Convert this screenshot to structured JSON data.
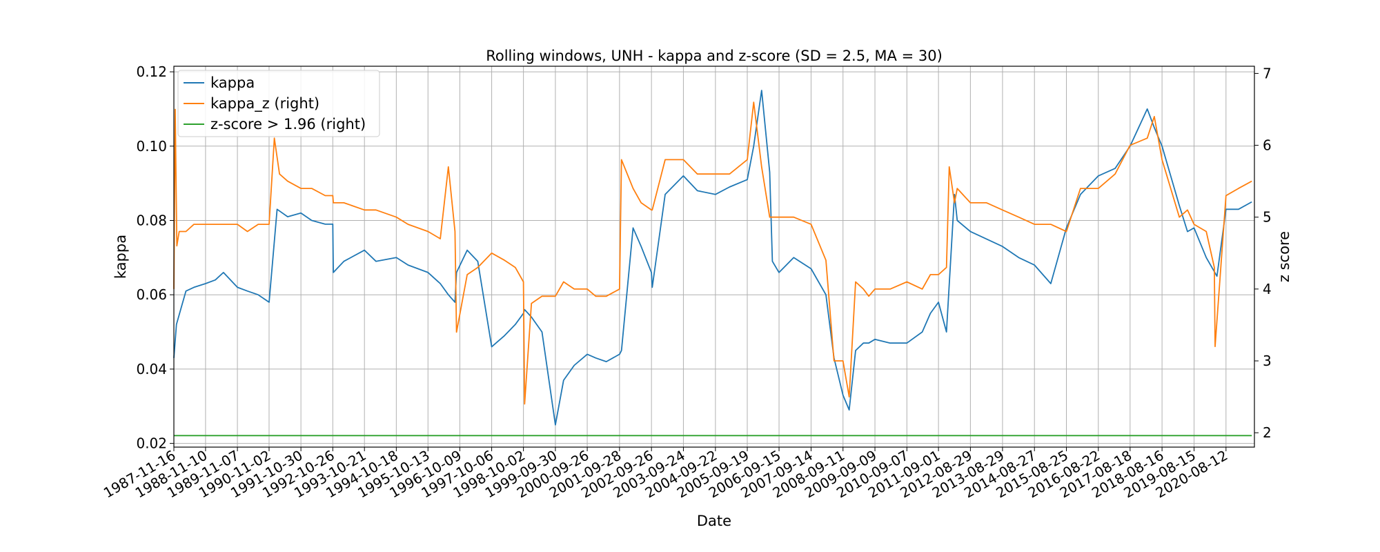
{
  "chart_data": {
    "type": "line",
    "title": "Rolling windows, UNH - kappa and z-score (SD = 2.5, MA = 30)",
    "xlabel": "Date",
    "ylabel": "kappa",
    "ylabel_right": "z score",
    "ylim": [
      0.019,
      0.1215
    ],
    "ylim_right": [
      1.8,
      7.1
    ],
    "y_ticks": [
      "0.02",
      "0.04",
      "0.06",
      "0.08",
      "0.10",
      "0.12"
    ],
    "y_ticks_right": [
      "2",
      "3",
      "4",
      "5",
      "6",
      "7"
    ],
    "x_range": [
      "1987-11-16",
      "2021-07-01"
    ],
    "x_ticks": [
      "1987-11-16",
      "1988-11-10",
      "1989-11-07",
      "1990-11-02",
      "1991-10-30",
      "1992-10-26",
      "1993-10-21",
      "1994-10-18",
      "1995-10-13",
      "1996-10-09",
      "1997-10-06",
      "1998-10-02",
      "1999-09-30",
      "2000-09-26",
      "2001-09-28",
      "2002-09-26",
      "2003-09-24",
      "2004-09-22",
      "2005-09-19",
      "2006-09-15",
      "2007-09-14",
      "2008-09-11",
      "2009-09-09",
      "2010-09-07",
      "2011-09-01",
      "2012-08-29",
      "2013-08-29",
      "2014-08-27",
      "2015-08-25",
      "2016-08-22",
      "2017-08-18",
      "2018-08-16",
      "2019-08-15",
      "2020-08-12"
    ],
    "grid": true,
    "legend_position": "top-left",
    "series": [
      {
        "name": "kappa",
        "axis": "left",
        "color": "#1f77b4",
        "x": [
          "1987-11-16",
          "1987-12-15",
          "1988-02-01",
          "1988-04-01",
          "1988-07-01",
          "1988-11-10",
          "1989-03-01",
          "1989-06-01",
          "1989-11-07",
          "1990-03-01",
          "1990-07-01",
          "1990-11-02",
          "1991-02-01",
          "1991-06-01",
          "1991-10-30",
          "1992-03-01",
          "1992-08-01",
          "1992-10-26",
          "1992-11-01",
          "1993-03-01",
          "1993-10-21",
          "1994-03-01",
          "1994-10-18",
          "1995-03-01",
          "1995-10-13",
          "1996-03-01",
          "1996-06-01",
          "1996-08-15",
          "1996-09-01",
          "1997-01-01",
          "1997-05-01",
          "1997-10-06",
          "1998-03-01",
          "1998-07-01",
          "1998-10-02",
          "1998-10-15",
          "1999-01-01",
          "1999-05-01",
          "1999-09-30",
          "2000-01-01",
          "2000-05-01",
          "2000-09-26",
          "2001-01-01",
          "2001-05-01",
          "2001-09-28",
          "2001-10-20",
          "2002-03-01",
          "2002-06-01",
          "2002-09-26",
          "2002-10-05",
          "2003-03-01",
          "2003-09-24",
          "2004-03-01",
          "2004-09-22",
          "2005-03-01",
          "2005-09-19",
          "2005-12-01",
          "2006-03-01",
          "2006-06-01",
          "2006-07-01",
          "2006-09-15",
          "2007-03-01",
          "2007-09-14",
          "2008-03-01",
          "2008-06-01",
          "2008-09-11",
          "2008-11-20",
          "2009-02-01",
          "2009-05-01",
          "2009-07-01",
          "2009-09-09",
          "2010-03-01",
          "2010-09-07",
          "2011-03-01",
          "2011-06-01",
          "2011-09-01",
          "2011-12-01",
          "2012-03-01",
          "2012-04-01",
          "2012-08-29",
          "2013-03-01",
          "2013-08-29",
          "2014-03-01",
          "2014-08-27",
          "2015-03-01",
          "2015-08-25",
          "2016-02-01",
          "2016-08-22",
          "2017-03-01",
          "2017-08-18",
          "2018-03-01",
          "2018-05-20",
          "2018-08-16",
          "2019-03-01",
          "2019-06-01",
          "2019-08-15",
          "2020-01-01",
          "2020-05-01",
          "2020-08-12",
          "2021-01-01",
          "2021-06-01"
        ],
        "values": [
          0.043,
          0.052,
          0.056,
          0.061,
          0.062,
          0.063,
          0.064,
          0.066,
          0.062,
          0.061,
          0.06,
          0.058,
          0.083,
          0.081,
          0.082,
          0.08,
          0.079,
          0.079,
          0.066,
          0.069,
          0.072,
          0.069,
          0.07,
          0.068,
          0.066,
          0.063,
          0.06,
          0.058,
          0.066,
          0.072,
          0.069,
          0.046,
          0.049,
          0.052,
          0.055,
          0.056,
          0.054,
          0.05,
          0.025,
          0.037,
          0.041,
          0.044,
          0.043,
          0.042,
          0.044,
          0.045,
          0.078,
          0.073,
          0.066,
          0.062,
          0.087,
          0.092,
          0.088,
          0.087,
          0.089,
          0.091,
          0.1,
          0.115,
          0.093,
          0.069,
          0.066,
          0.07,
          0.067,
          0.06,
          0.043,
          0.033,
          0.029,
          0.045,
          0.047,
          0.047,
          0.048,
          0.047,
          0.047,
          0.05,
          0.055,
          0.058,
          0.05,
          0.087,
          0.08,
          0.077,
          0.075,
          0.073,
          0.07,
          0.068,
          0.063,
          0.078,
          0.087,
          0.092,
          0.094,
          0.1,
          0.11,
          0.105,
          0.1,
          0.084,
          0.077,
          0.078,
          0.07,
          0.065,
          0.083,
          0.083,
          0.085
        ]
      },
      {
        "name": "kappa_z (right)",
        "axis": "right",
        "color": "#ff7f0e",
        "x": [
          "1987-11-16",
          "1987-12-01",
          "1987-12-20",
          "1988-01-15",
          "1988-04-01",
          "1988-07-01",
          "1988-11-10",
          "1989-03-01",
          "1989-06-01",
          "1989-11-07",
          "1990-03-01",
          "1990-07-01",
          "1990-11-02",
          "1991-01-01",
          "1991-03-01",
          "1991-06-01",
          "1991-10-30",
          "1992-03-01",
          "1992-08-01",
          "1992-10-26",
          "1992-11-01",
          "1993-03-01",
          "1993-10-21",
          "1994-03-01",
          "1994-10-18",
          "1995-03-01",
          "1995-10-13",
          "1996-03-01",
          "1996-06-01",
          "1996-08-15",
          "1996-09-01",
          "1997-01-01",
          "1997-05-01",
          "1997-10-06",
          "1998-03-01",
          "1998-07-01",
          "1998-10-02",
          "1998-10-15",
          "1999-01-01",
          "1999-05-01",
          "1999-09-30",
          "2000-01-01",
          "2000-05-01",
          "2000-09-26",
          "2001-01-01",
          "2001-05-01",
          "2001-09-28",
          "2001-10-20",
          "2002-03-01",
          "2002-06-01",
          "2002-09-26",
          "2002-10-05",
          "2003-03-01",
          "2003-09-24",
          "2004-03-01",
          "2004-09-22",
          "2005-03-01",
          "2005-09-19",
          "2005-12-01",
          "2006-03-01",
          "2006-06-01",
          "2006-07-01",
          "2006-09-15",
          "2007-03-01",
          "2007-09-14",
          "2008-03-01",
          "2008-06-01",
          "2008-09-11",
          "2008-11-20",
          "2009-02-01",
          "2009-05-01",
          "2009-07-01",
          "2009-09-09",
          "2010-03-01",
          "2010-09-07",
          "2011-03-01",
          "2011-06-01",
          "2011-09-01",
          "2011-12-01",
          "2012-01-01",
          "2012-03-01",
          "2012-04-01",
          "2012-08-29",
          "2013-03-01",
          "2013-08-29",
          "2014-03-01",
          "2014-08-27",
          "2015-03-01",
          "2015-08-25",
          "2016-02-01",
          "2016-08-22",
          "2017-03-01",
          "2017-08-18",
          "2018-03-01",
          "2018-05-20",
          "2018-08-16",
          "2019-03-01",
          "2019-06-01",
          "2019-08-15",
          "2020-01-01",
          "2020-04-01",
          "2020-04-10",
          "2020-08-12",
          "2021-01-01",
          "2021-06-01"
        ],
        "values": [
          4.0,
          6.5,
          4.6,
          4.8,
          4.8,
          4.9,
          4.9,
          4.9,
          4.9,
          4.9,
          4.8,
          4.9,
          4.9,
          6.1,
          5.6,
          5.5,
          5.4,
          5.4,
          5.3,
          5.3,
          5.2,
          5.2,
          5.1,
          5.1,
          5.0,
          4.9,
          4.8,
          4.7,
          5.7,
          4.8,
          3.4,
          4.2,
          4.3,
          4.5,
          4.4,
          4.3,
          4.1,
          2.4,
          3.8,
          3.9,
          3.9,
          4.1,
          4.0,
          4.0,
          3.9,
          3.9,
          4.0,
          5.8,
          5.4,
          5.2,
          5.1,
          5.1,
          5.8,
          5.8,
          5.6,
          5.6,
          5.6,
          5.8,
          6.6,
          5.7,
          5.0,
          5.0,
          5.0,
          5.0,
          4.9,
          4.4,
          3.0,
          3.0,
          2.5,
          4.1,
          4.0,
          3.9,
          4.0,
          4.0,
          4.1,
          4.0,
          4.2,
          4.2,
          4.3,
          5.7,
          5.2,
          5.4,
          5.2,
          5.2,
          5.1,
          5.0,
          4.9,
          4.9,
          4.8,
          5.4,
          5.4,
          5.6,
          6.0,
          6.1,
          6.4,
          5.8,
          5.0,
          5.1,
          4.9,
          4.8,
          4.3,
          3.2,
          5.3,
          5.4,
          5.5
        ]
      },
      {
        "name": "z-score > 1.96 (right)",
        "axis": "right",
        "color": "#2ca02c",
        "x": [
          "1987-11-16",
          "2021-06-01"
        ],
        "values": [
          1.96,
          1.96
        ]
      }
    ]
  }
}
